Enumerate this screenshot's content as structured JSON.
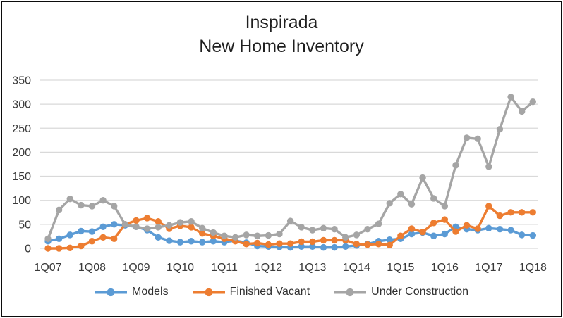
{
  "header": {
    "title_line1": "Inspirada",
    "title_line2": "New Home Inventory"
  },
  "chart_data": {
    "type": "line",
    "title": "Inspirada New Home Inventory",
    "xlabel": "",
    "ylabel": "",
    "ylim": [
      0,
      350
    ],
    "ytick_step": 50,
    "grid": true,
    "legend_position": "bottom",
    "x_tick_labels": [
      "1Q07",
      "1Q08",
      "1Q09",
      "1Q10",
      "1Q11",
      "1Q12",
      "1Q13",
      "1Q14",
      "1Q15",
      "1Q16",
      "1Q17",
      "1Q18"
    ],
    "categories": [
      "1Q07",
      "2Q07",
      "3Q07",
      "4Q07",
      "1Q08",
      "2Q08",
      "3Q08",
      "4Q08",
      "1Q09",
      "2Q09",
      "3Q09",
      "4Q09",
      "1Q10",
      "2Q10",
      "3Q10",
      "4Q10",
      "1Q11",
      "2Q11",
      "3Q11",
      "4Q11",
      "1Q12",
      "2Q12",
      "3Q12",
      "4Q12",
      "1Q13",
      "2Q13",
      "3Q13",
      "4Q13",
      "1Q14",
      "2Q14",
      "3Q14",
      "4Q14",
      "1Q15",
      "2Q15",
      "3Q15",
      "4Q15",
      "1Q16",
      "2Q16",
      "3Q16",
      "4Q16",
      "1Q17",
      "2Q17",
      "3Q17",
      "4Q17",
      "1Q18"
    ],
    "series": [
      {
        "name": "Models",
        "color": "#5B9BD5",
        "values": [
          15,
          20,
          28,
          36,
          35,
          45,
          50,
          48,
          45,
          38,
          23,
          16,
          13,
          15,
          13,
          15,
          13,
          16,
          12,
          5,
          4,
          3,
          2,
          4,
          4,
          2,
          2,
          4,
          6,
          9,
          15,
          18,
          20,
          30,
          33,
          26,
          30,
          45,
          40,
          38,
          42,
          40,
          38,
          28,
          27
        ]
      },
      {
        "name": "Finished Vacant",
        "color": "#ED7D31",
        "values": [
          0,
          0,
          1,
          5,
          15,
          23,
          20,
          50,
          58,
          63,
          56,
          41,
          47,
          44,
          31,
          26,
          20,
          15,
          9,
          11,
          8,
          10,
          10,
          14,
          14,
          17,
          17,
          17,
          9,
          8,
          9,
          7,
          26,
          41,
          34,
          53,
          60,
          35,
          48,
          41,
          88,
          68,
          75,
          75,
          75
        ]
      },
      {
        "name": "Under Construction",
        "color": "#A5A5A5",
        "values": [
          20,
          80,
          103,
          90,
          88,
          100,
          88,
          50,
          45,
          41,
          44,
          48,
          54,
          56,
          42,
          33,
          26,
          23,
          28,
          26,
          27,
          30,
          57,
          44,
          38,
          42,
          40,
          23,
          28,
          40,
          51,
          94,
          113,
          92,
          147,
          104,
          88,
          173,
          230,
          228,
          170,
          248,
          315,
          285,
          305
        ]
      }
    ]
  },
  "style": {
    "gridline_color": "#d9d9d9",
    "axis_text_color": "#3a3a3a",
    "border_color": "#0b0b0b"
  }
}
